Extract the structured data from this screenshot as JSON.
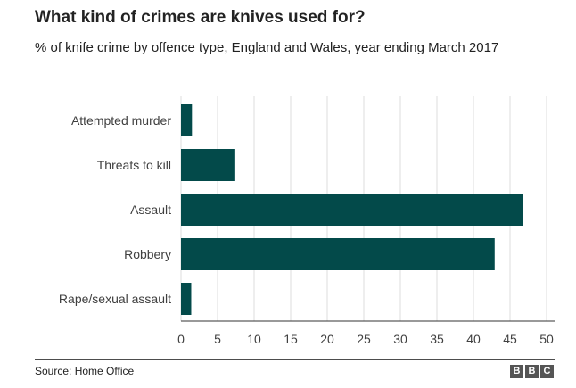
{
  "title": "What kind of crimes are knives used for?",
  "subtitle": "% of knife crime by offence type, England and Wales, year ending March 2017",
  "source": "Source: Home Office",
  "logo": [
    "B",
    "B",
    "C"
  ],
  "chart_data": {
    "type": "bar",
    "orientation": "horizontal",
    "categories": [
      "Attempted murder",
      "Threats to kill",
      "Assault",
      "Robbery",
      "Rape/sexual assault"
    ],
    "values": [
      1.5,
      7.3,
      46.8,
      42.9,
      1.4
    ],
    "xlim": [
      0,
      50
    ],
    "xticks": [
      "0",
      "5",
      "10",
      "15",
      "20",
      "25",
      "30",
      "35",
      "40",
      "45",
      "50"
    ],
    "grid": true,
    "bar_color": "#034a4a",
    "grid_color": "#dddddd"
  }
}
